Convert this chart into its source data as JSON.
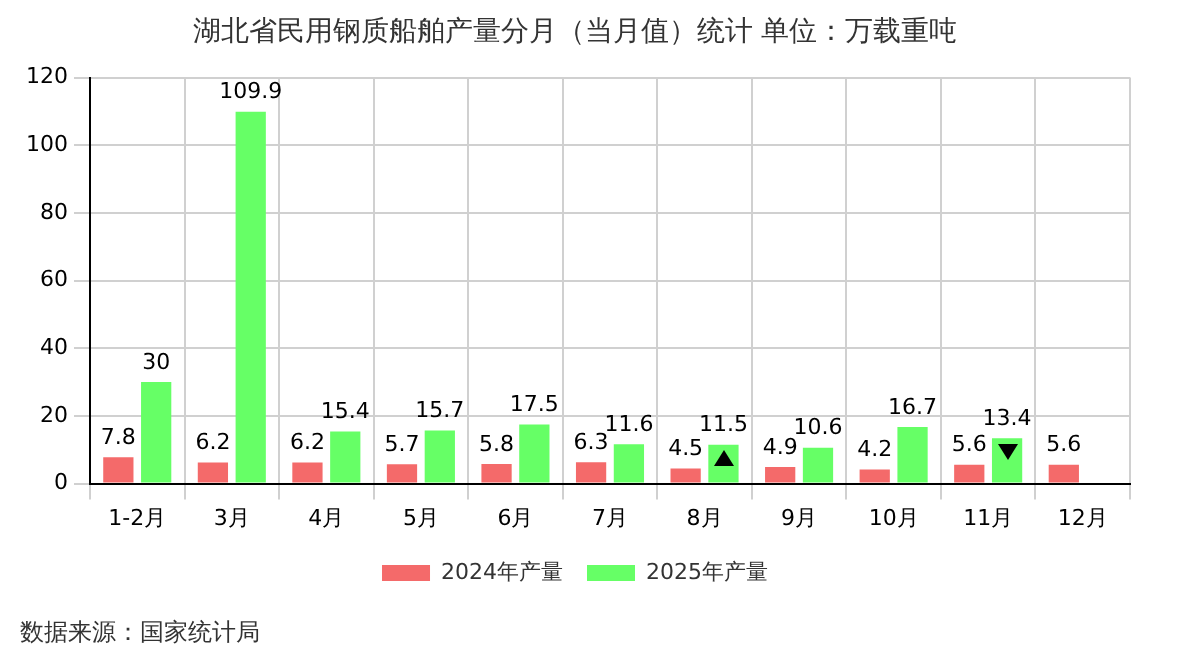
{
  "chart_data": {
    "type": "bar",
    "title": "湖北省民用钢质船舶产量分月（当月值）统计 单位：万载重吨",
    "categories": [
      "1-2月",
      "3月",
      "4月",
      "5月",
      "6月",
      "7月",
      "8月",
      "9月",
      "10月",
      "11月",
      "12月"
    ],
    "series": [
      {
        "name": "2024年产量",
        "color": "#f46a6a",
        "values": [
          7.8,
          6.2,
          6.2,
          5.7,
          5.8,
          6.3,
          4.5,
          4.9,
          4.2,
          5.6,
          5.6
        ]
      },
      {
        "name": "2025年产量",
        "color": "#66ff66",
        "values": [
          30,
          109.9,
          15.4,
          15.7,
          17.5,
          11.6,
          11.5,
          10.6,
          16.7,
          13.4,
          null
        ]
      }
    ],
    "ylim": [
      0,
      120
    ],
    "yticks": [
      0,
      20,
      40,
      60,
      80,
      100,
      120
    ],
    "grid": true,
    "legend": "bottom",
    "data_labels": true,
    "annotations": [
      "数据来源：国家统计局"
    ]
  }
}
